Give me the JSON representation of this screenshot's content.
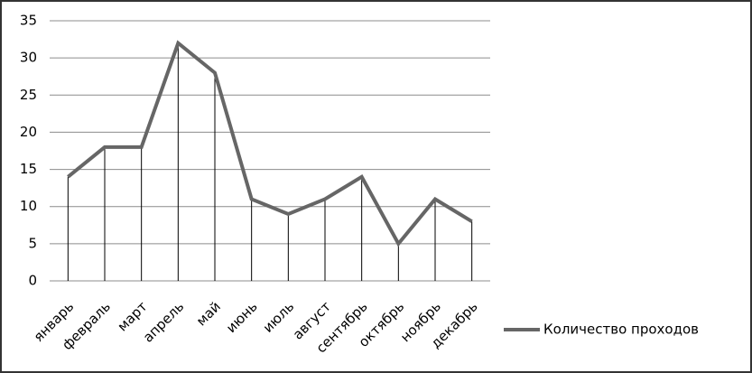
{
  "chart_data": {
    "type": "line",
    "categories": [
      "январь",
      "февраль",
      "март",
      "апрель",
      "май",
      "июнь",
      "июль",
      "август",
      "сентябрь",
      "октябрь",
      "ноябрь",
      "декабрь"
    ],
    "series": [
      {
        "name": "Количество проходов",
        "color": "#666666",
        "values": [
          14,
          18,
          18,
          32,
          28,
          11,
          9,
          11,
          14,
          5,
          11,
          8
        ]
      }
    ],
    "ylim": [
      0,
      35
    ],
    "yticks": [
      0,
      5,
      10,
      15,
      20,
      25,
      30,
      35
    ],
    "grid": true,
    "drop_lines": true,
    "legend": "right"
  }
}
